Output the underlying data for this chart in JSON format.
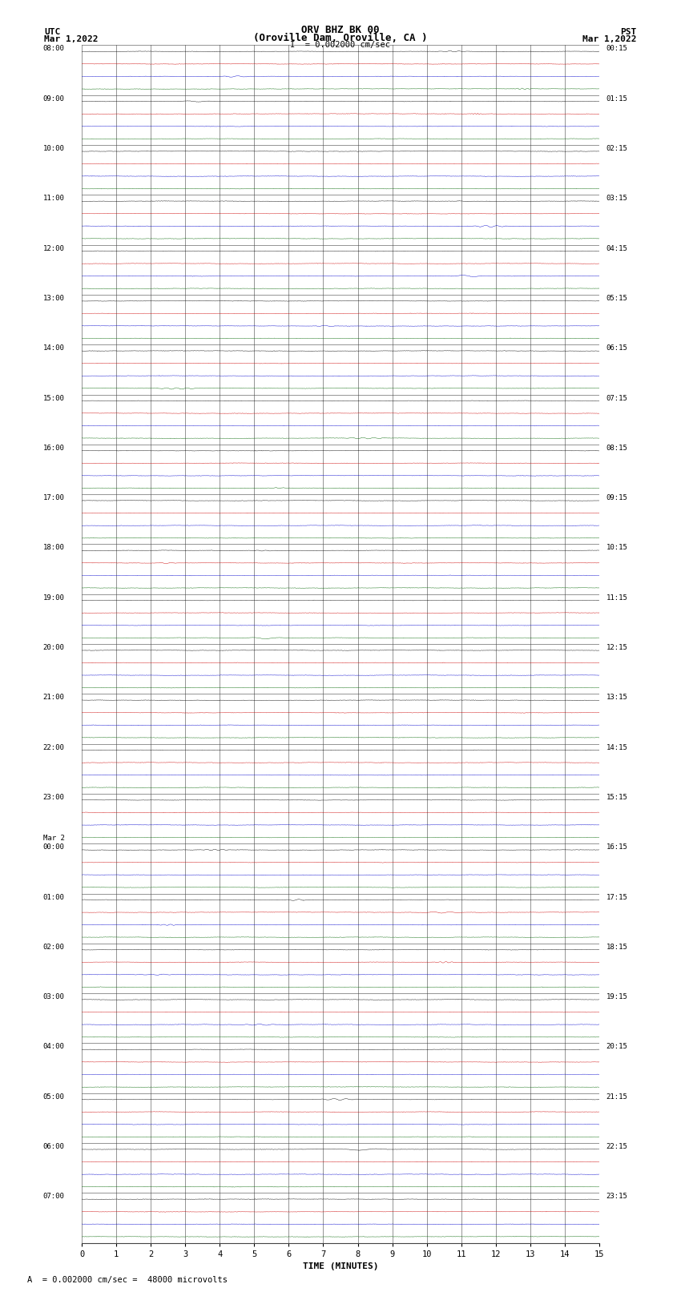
{
  "title_line1": "ORV BHZ BK 00",
  "title_line2": "(Oroville Dam, Oroville, CA )",
  "title_line3": "I  = 0.002000 cm/sec",
  "label_utc": "UTC",
  "label_pst": "PST",
  "label_date_left": "Mar 1,2022",
  "label_date_right": "Mar 1,2022",
  "xlabel": "TIME (MINUTES)",
  "footnote": "A  = 0.002000 cm/sec =  48000 microvolts",
  "bg_color": "#ffffff",
  "grid_color": "#333333",
  "trace_colors": [
    "#000000",
    "#cc0000",
    "#0000cc",
    "#006600"
  ],
  "num_hour_rows": 24,
  "traces_per_hour": 4,
  "minutes_per_row": 15,
  "noise_amplitude": 0.018,
  "left_labels": [
    [
      "08:00",
      0
    ],
    [
      "09:00",
      1
    ],
    [
      "10:00",
      2
    ],
    [
      "11:00",
      3
    ],
    [
      "12:00",
      4
    ],
    [
      "13:00",
      5
    ],
    [
      "14:00",
      6
    ],
    [
      "15:00",
      7
    ],
    [
      "16:00",
      8
    ],
    [
      "17:00",
      9
    ],
    [
      "18:00",
      10
    ],
    [
      "19:00",
      11
    ],
    [
      "20:00",
      12
    ],
    [
      "21:00",
      13
    ],
    [
      "22:00",
      14
    ],
    [
      "23:00",
      15
    ],
    [
      "Mar 2",
      16
    ],
    [
      "00:00",
      16
    ],
    [
      "01:00",
      17
    ],
    [
      "02:00",
      18
    ],
    [
      "03:00",
      19
    ],
    [
      "04:00",
      20
    ],
    [
      "05:00",
      21
    ],
    [
      "06:00",
      22
    ],
    [
      "07:00",
      23
    ]
  ],
  "right_labels": [
    [
      "00:15",
      0
    ],
    [
      "01:15",
      1
    ],
    [
      "02:15",
      2
    ],
    [
      "03:15",
      3
    ],
    [
      "04:15",
      4
    ],
    [
      "05:15",
      5
    ],
    [
      "06:15",
      6
    ],
    [
      "07:15",
      7
    ],
    [
      "08:15",
      8
    ],
    [
      "09:15",
      9
    ],
    [
      "10:15",
      10
    ],
    [
      "11:15",
      11
    ],
    [
      "12:15",
      12
    ],
    [
      "13:15",
      13
    ],
    [
      "14:15",
      14
    ],
    [
      "15:15",
      15
    ],
    [
      "16:15",
      16
    ],
    [
      "17:15",
      17
    ],
    [
      "18:15",
      18
    ],
    [
      "19:15",
      19
    ],
    [
      "20:15",
      20
    ],
    [
      "21:15",
      21
    ],
    [
      "22:15",
      22
    ],
    [
      "23:15",
      23
    ]
  ]
}
